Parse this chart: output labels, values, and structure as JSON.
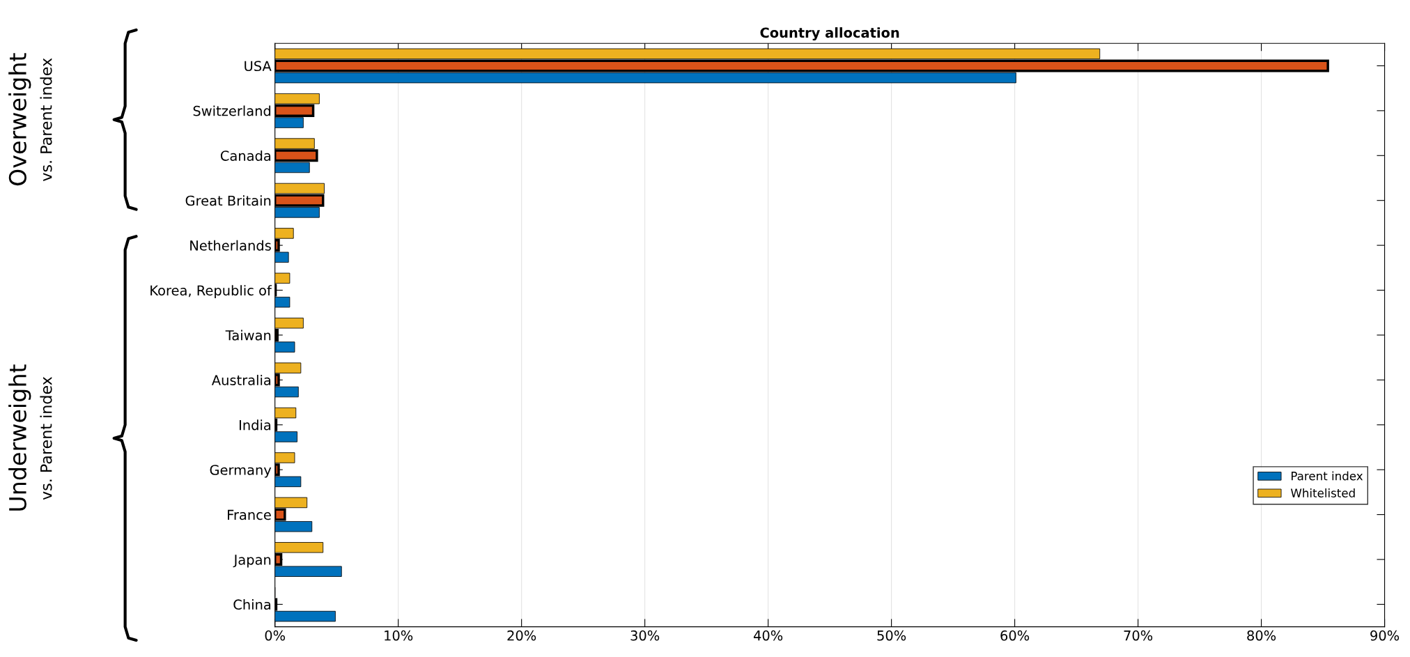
{
  "chart_data": {
    "type": "bar",
    "orientation": "horizontal",
    "title": "Country allocation",
    "categories": [
      "USA",
      "Switzerland",
      "Canada",
      "Great Britain",
      "Netherlands",
      "Korea, Republic of",
      "Taiwan",
      "Australia",
      "India",
      "Germany",
      "France",
      "Japan",
      "China"
    ],
    "series": [
      {
        "name": "Parent index",
        "color": "#0072bd",
        "values": [
          60.1,
          2.3,
          2.8,
          3.6,
          1.1,
          1.2,
          1.6,
          1.9,
          1.8,
          2.1,
          3.0,
          5.4,
          4.9
        ]
      },
      {
        "color": "#d95319",
        "values": [
          85.4,
          3.1,
          3.4,
          3.9,
          0.3,
          0.05,
          0.2,
          0.3,
          0.1,
          0.3,
          0.8,
          0.5,
          0.1
        ]
      },
      {
        "name": "Whitelisted",
        "color": "#edb120",
        "values": [
          66.9,
          3.6,
          3.2,
          4.0,
          1.5,
          1.2,
          2.3,
          2.1,
          1.7,
          1.6,
          2.6,
          3.9,
          0
        ]
      }
    ],
    "xlim": [
      0,
      90
    ],
    "xticks": [
      {
        "value": 0,
        "label": "0%"
      },
      {
        "value": 10,
        "label": "10%"
      },
      {
        "value": 20,
        "label": "20%"
      },
      {
        "value": 30,
        "label": "30%"
      },
      {
        "value": 40,
        "label": "40%"
      },
      {
        "value": 50,
        "label": "50%"
      },
      {
        "value": 60,
        "label": "60%"
      },
      {
        "value": 70,
        "label": "70%"
      },
      {
        "value": 80,
        "label": "80%"
      },
      {
        "value": 90,
        "label": "90%"
      }
    ],
    "grid": "x",
    "legend": "lower right",
    "annotations": [
      "Overweight",
      "vs. Parent index",
      "Underweight",
      "vs. Parent index"
    ]
  }
}
